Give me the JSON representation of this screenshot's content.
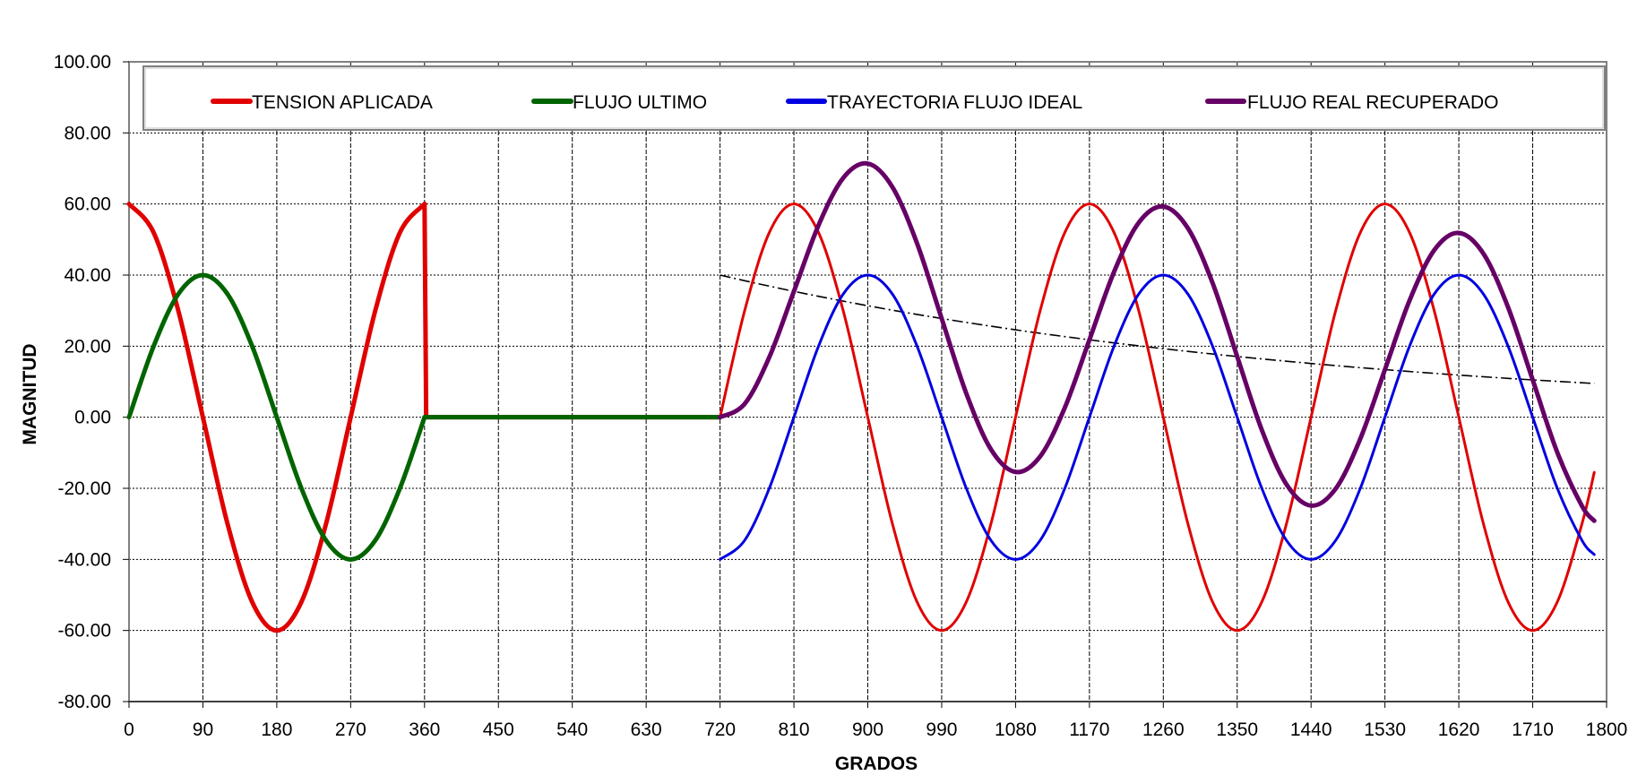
{
  "chart_data": {
    "type": "line",
    "xlabel": "GRADOS",
    "ylabel": "MAGNITUD",
    "xlim": [
      0,
      1800
    ],
    "ylim": [
      -80,
      100
    ],
    "xticks": [
      0,
      90,
      180,
      270,
      360,
      450,
      540,
      630,
      720,
      810,
      900,
      990,
      1080,
      1170,
      1260,
      1350,
      1440,
      1530,
      1620,
      1710,
      1800
    ],
    "yticks": [
      "-80.00",
      "-60.00",
      "-40.00",
      "-20.00",
      "0.00",
      "20.00",
      "40.00",
      "60.00",
      "80.00",
      "100.00"
    ],
    "grid": true,
    "legend_placement": "top",
    "series": [
      {
        "name": "TENSION APLICADA",
        "color": "#e00000",
        "segments": [
          [
            [
              0,
              60
            ],
            [
              30,
              51.96
            ],
            [
              60,
              30
            ],
            [
              90,
              0
            ],
            [
              120,
              -30
            ],
            [
              150,
              -51.96
            ],
            [
              180,
              -60
            ],
            [
              210,
              -51.96
            ],
            [
              240,
              -30
            ],
            [
              270,
              0
            ],
            [
              300,
              30
            ],
            [
              330,
              51.96
            ],
            [
              360,
              60
            ]
          ],
          [
            [
              360,
              60
            ],
            [
              362,
              0
            ],
            [
              720,
              0
            ]
          ],
          [
            [
              720,
              0
            ],
            [
              750,
              30
            ],
            [
              780,
              51.96
            ],
            [
              810,
              60
            ],
            [
              840,
              51.96
            ],
            [
              870,
              30
            ],
            [
              900,
              0
            ],
            [
              930,
              -30
            ],
            [
              960,
              -51.96
            ],
            [
              990,
              -60
            ],
            [
              1020,
              -51.96
            ],
            [
              1050,
              -30
            ],
            [
              1080,
              0
            ],
            [
              1110,
              30
            ],
            [
              1140,
              51.96
            ],
            [
              1170,
              60
            ],
            [
              1200,
              51.96
            ],
            [
              1230,
              30
            ],
            [
              1260,
              0
            ],
            [
              1290,
              -30
            ],
            [
              1320,
              -51.96
            ],
            [
              1350,
              -60
            ],
            [
              1380,
              -51.96
            ],
            [
              1410,
              -30
            ],
            [
              1440,
              0
            ],
            [
              1470,
              30
            ],
            [
              1500,
              51.96
            ],
            [
              1530,
              60
            ],
            [
              1560,
              51.96
            ],
            [
              1590,
              30
            ],
            [
              1620,
              0
            ],
            [
              1650,
              -30
            ],
            [
              1680,
              -51.96
            ],
            [
              1710,
              -60
            ],
            [
              1740,
              -51.96
            ],
            [
              1770,
              -30
            ],
            [
              1785,
              -15.5
            ]
          ]
        ]
      },
      {
        "name": "FLUJO ULTIMO",
        "color": "#006400",
        "segments": [
          [
            [
              0,
              0
            ],
            [
              30,
              20
            ],
            [
              60,
              34.64
            ],
            [
              90,
              40
            ],
            [
              120,
              34.64
            ],
            [
              150,
              20
            ],
            [
              180,
              0
            ],
            [
              210,
              -20
            ],
            [
              240,
              -34.64
            ],
            [
              270,
              -40
            ],
            [
              300,
              -34.64
            ],
            [
              330,
              -20
            ],
            [
              360,
              0
            ]
          ],
          [
            [
              360,
              0
            ],
            [
              720,
              0
            ]
          ]
        ]
      },
      {
        "name": "TRAYECTORIA FLUJO IDEAL",
        "color": "#0000e0",
        "segments": [
          [
            [
              720,
              -40
            ],
            [
              750,
              -34.64
            ],
            [
              780,
              -20
            ],
            [
              810,
              0
            ],
            [
              840,
              20
            ],
            [
              870,
              34.64
            ],
            [
              900,
              40
            ],
            [
              930,
              34.64
            ],
            [
              960,
              20
            ],
            [
              990,
              0
            ],
            [
              1020,
              -20
            ],
            [
              1050,
              -34.64
            ],
            [
              1080,
              -40
            ],
            [
              1110,
              -34.64
            ],
            [
              1140,
              -20
            ],
            [
              1170,
              0
            ],
            [
              1200,
              20
            ],
            [
              1230,
              34.64
            ],
            [
              1260,
              40
            ],
            [
              1290,
              34.64
            ],
            [
              1320,
              20
            ],
            [
              1350,
              0
            ],
            [
              1380,
              -20
            ],
            [
              1410,
              -34.64
            ],
            [
              1440,
              -40
            ],
            [
              1470,
              -34.64
            ],
            [
              1500,
              -20
            ],
            [
              1530,
              0
            ],
            [
              1560,
              20
            ],
            [
              1590,
              34.64
            ],
            [
              1620,
              40
            ],
            [
              1650,
              34.64
            ],
            [
              1680,
              20
            ],
            [
              1710,
              0
            ],
            [
              1740,
              -20
            ],
            [
              1770,
              -34.64
            ],
            [
              1785,
              -38.64
            ]
          ]
        ]
      },
      {
        "name": "FLUJO REAL RECUPERADO",
        "color": "#660066",
        "segments": [
          [
            [
              720,
              0
            ],
            [
              750,
              3.77
            ],
            [
              780,
              16.89
            ],
            [
              810,
              35.42
            ],
            [
              840,
              54.02
            ],
            [
              870,
              67.31
            ],
            [
              900,
              71.37
            ],
            [
              930,
              64.76
            ],
            [
              960,
              48.93
            ],
            [
              990,
              27.78
            ],
            [
              1020,
              6.68
            ],
            [
              1050,
              -9.02
            ],
            [
              1080,
              -15.4
            ],
            [
              1110,
              -11.02
            ],
            [
              1140,
              2.69
            ],
            [
              1170,
              21.79
            ],
            [
              1200,
              40.92
            ],
            [
              1230,
              54.73
            ],
            [
              1260,
              59.29
            ],
            [
              1290,
              53.17
            ],
            [
              1320,
              37.79
            ],
            [
              1350,
              17.08
            ],
            [
              1380,
              -3.59
            ],
            [
              1410,
              -18.88
            ],
            [
              1440,
              -24.87
            ],
            [
              1470,
              -20.11
            ],
            [
              1500,
              -6.05
            ],
            [
              1530,
              13.4
            ],
            [
              1560,
              32.87
            ],
            [
              1590,
              46.99
            ],
            [
              1620,
              51.86
            ],
            [
              1650,
              46.03
            ],
            [
              1680,
              30.94
            ],
            [
              1710,
              10.51
            ],
            [
              1740,
              -9.91
            ],
            [
              1770,
              -24.95
            ],
            [
              1785,
              -29.14
            ]
          ]
        ]
      },
      {
        "name": "decay envelope",
        "color": "#000000",
        "in_legend": false,
        "segments": [
          [
            [
              720,
              40
            ],
            [
              750,
              38.41
            ],
            [
              780,
              36.89
            ],
            [
              810,
              35.42
            ],
            [
              840,
              34.02
            ],
            [
              870,
              32.67
            ],
            [
              900,
              31.37
            ],
            [
              930,
              30.12
            ],
            [
              960,
              28.93
            ],
            [
              990,
              27.78
            ],
            [
              1020,
              26.68
            ],
            [
              1050,
              25.62
            ],
            [
              1080,
              24.6
            ],
            [
              1110,
              23.62
            ],
            [
              1140,
              22.69
            ],
            [
              1170,
              21.79
            ],
            [
              1200,
              20.92
            ],
            [
              1230,
              20.09
            ],
            [
              1260,
              19.29
            ],
            [
              1290,
              18.53
            ],
            [
              1320,
              17.79
            ],
            [
              1350,
              17.08
            ],
            [
              1380,
              16.41
            ],
            [
              1410,
              15.76
            ],
            [
              1440,
              15.13
            ],
            [
              1470,
              14.53
            ],
            [
              1500,
              13.95
            ],
            [
              1530,
              13.4
            ],
            [
              1560,
              12.87
            ],
            [
              1590,
              12.35
            ],
            [
              1620,
              11.86
            ],
            [
              1650,
              11.39
            ],
            [
              1680,
              10.94
            ],
            [
              1710,
              10.51
            ],
            [
              1740,
              10.09
            ],
            [
              1770,
              9.69
            ],
            [
              1785,
              9.5
            ]
          ]
        ]
      }
    ]
  }
}
